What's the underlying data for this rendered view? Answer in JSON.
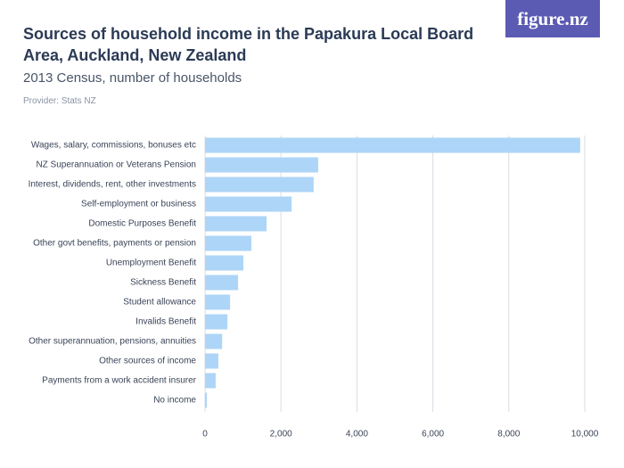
{
  "chart_data": {
    "type": "barh",
    "title": "Sources of household income in the Papakura Local Board Area, Auckland, New Zealand",
    "subtitle": "2013 Census, number of households",
    "provider": "Provider: Stats NZ",
    "logo": "figure.nz",
    "categories": [
      "Wages, salary, commissions, bonuses etc",
      "NZ Superannuation or Veterans Pension",
      "Interest, dividends, rent, other investments",
      "Self-employment or business",
      "Domestic Purposes Benefit",
      "Other govt benefits, payments or pension",
      "Unemployment Benefit",
      "Sickness Benefit",
      "Student allowance",
      "Invalids Benefit",
      "Other superannuation, pensions, annuities",
      "Other sources of income",
      "Payments from a work accident insurer",
      "No income"
    ],
    "values": [
      9880,
      2980,
      2860,
      2280,
      1620,
      1220,
      1010,
      870,
      660,
      590,
      450,
      350,
      280,
      50
    ],
    "color": "#add5f7",
    "xlim": [
      0,
      10000
    ],
    "xticks": [
      0,
      {
        "value": 2000,
        "label": "2,000"
      },
      {
        "value": 4000,
        "label": "4,000"
      },
      {
        "value": 6000,
        "label": "6,000"
      },
      {
        "value": 8000,
        "label": "8,000"
      },
      {
        "value": 10000,
        "label": "10,000"
      }
    ],
    "grid": true
  }
}
